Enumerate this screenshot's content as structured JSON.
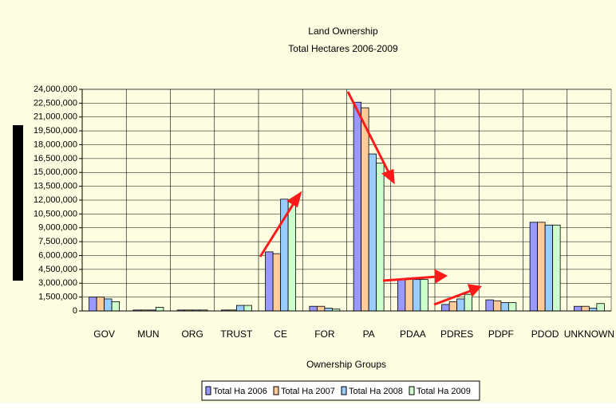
{
  "chart_data": {
    "type": "bar",
    "title": "Land Ownership",
    "subtitle": "Total Hectares 2006-2009",
    "x_label": "Ownership Groups",
    "categories": [
      "GOV",
      "MUN",
      "ORG",
      "TRUST",
      "CE",
      "FOR",
      "PA",
      "PDAA",
      "PDRES",
      "PDPF",
      "PDOD",
      "UNKNOWN"
    ],
    "series": [
      {
        "name": "Total Ha 2006",
        "color": "#9999ff",
        "values": [
          1500000,
          100000,
          100000,
          100000,
          6400000,
          500000,
          22600000,
          3400000,
          700000,
          1200000,
          9600000,
          500000
        ]
      },
      {
        "name": "Total Ha 2007",
        "color": "#ffcc99",
        "values": [
          1500000,
          100000,
          100000,
          100000,
          6200000,
          500000,
          22000000,
          3400000,
          1000000,
          1100000,
          9600000,
          500000
        ]
      },
      {
        "name": "Total Ha 2008",
        "color": "#99ccff",
        "values": [
          1300000,
          100000,
          100000,
          600000,
          12100000,
          300000,
          17000000,
          3400000,
          1300000,
          900000,
          9300000,
          300000
        ]
      },
      {
        "name": "Total Ha 2009",
        "color": "#ccffcc",
        "values": [
          1000000,
          400000,
          100000,
          600000,
          11800000,
          200000,
          16000000,
          3400000,
          1800000,
          900000,
          9300000,
          800000
        ]
      }
    ],
    "ylim": [
      0,
      24000000
    ],
    "yticks": [
      0,
      {
        "value": 1500000,
        "label": "1,500,000"
      },
      {
        "value": 3000000,
        "label": "3,000,000"
      },
      {
        "value": 4500000,
        "label": "4,500,000"
      },
      {
        "value": 6000000,
        "label": "6,000,000"
      },
      {
        "value": 7500000,
        "label": "7,500,000"
      },
      {
        "value": 9000000,
        "label": "9,000,000"
      },
      {
        "value": 10500000,
        "label": "10,500,000"
      },
      {
        "value": 12000000,
        "label": "12,000,000"
      },
      {
        "value": 13500000,
        "label": "13,500,000"
      },
      {
        "value": 15000000,
        "label": "15,000,000"
      },
      {
        "value": 16500000,
        "label": "16,500,000"
      },
      {
        "value": 18000000,
        "label": "18,000,000"
      },
      {
        "value": 19500000,
        "label": "19,500,000"
      },
      {
        "value": 21000000,
        "label": "21,000,000"
      },
      {
        "value": 22500000,
        "label": "22,500,000"
      },
      {
        "value": 24000000,
        "label": "24,000,000"
      }
    ],
    "grid": true
  }
}
